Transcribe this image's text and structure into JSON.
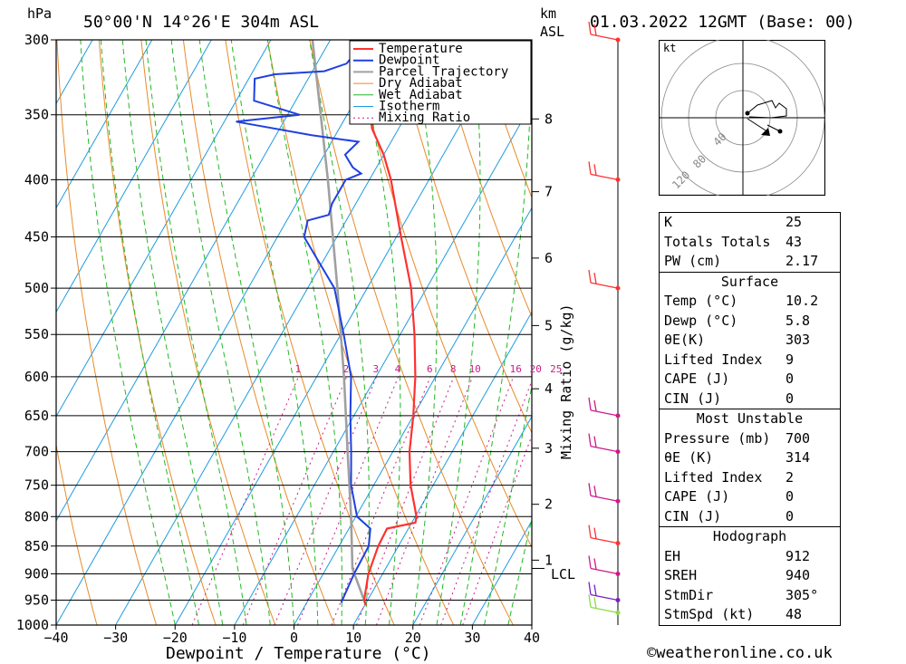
{
  "header": {
    "unit_left": "hPa",
    "location": "50°00'N  14°26'E  304m  ASL",
    "km_label": "km",
    "asl_label": "ASL",
    "datetime": "01.03.2022  12GMT  (Base: 00)"
  },
  "axes": {
    "xlabel": "Dewpoint / Temperature (°C)",
    "mixing_ratio_label": "Mixing Ratio (g/kg)",
    "lcl_label": "LCL",
    "x_ticks": [
      "−40",
      "−30",
      "−20",
      "−10",
      "0",
      "10",
      "20",
      "30",
      "40"
    ],
    "km_ticks": [
      "1",
      "2",
      "3",
      "4",
      "5",
      "6",
      "7",
      "8"
    ],
    "mixing_ratio_ticks": [
      "1",
      "2",
      "3",
      "4",
      "6",
      "8",
      "10",
      "16",
      "20",
      "25"
    ]
  },
  "legend": [
    "Temperature",
    "Dewpoint",
    "Parcel Trajectory",
    "Dry Adiabat",
    "Wet Adiabat",
    "Isotherm",
    "Mixing Ratio"
  ],
  "colors": {
    "temperature": "#ff3030",
    "dewpoint": "#2040e0",
    "parcel": "#a0a0a0",
    "dry_adiabat": "#e88a2a",
    "wet_adiabat": "#22b822",
    "isotherm": "#1e9be0",
    "mixing_ratio": "#cc1a8a"
  },
  "chart_data": {
    "type": "line",
    "title": "50°00'N 14°26'E 304m ASL",
    "xlabel": "Dewpoint / Temperature (°C)",
    "ylabel": "hPa",
    "y_scale": "log",
    "xlim": [
      -40,
      40
    ],
    "ylim": [
      1000,
      300
    ],
    "y_ticks": [
      300,
      350,
      400,
      450,
      500,
      550,
      600,
      650,
      700,
      750,
      800,
      850,
      900,
      950,
      1000
    ],
    "series": [
      {
        "name": "Temperature",
        "points": [
          [
            960,
            10.2
          ],
          [
            950,
            9.4
          ],
          [
            900,
            7.6
          ],
          [
            850,
            6.6
          ],
          [
            820,
            6.4
          ],
          [
            810,
            10.6
          ],
          [
            800,
            10.2
          ],
          [
            750,
            6.2
          ],
          [
            700,
            2.8
          ],
          [
            650,
            0.0
          ],
          [
            600,
            -3.4
          ],
          [
            550,
            -7.6
          ],
          [
            500,
            -12.6
          ],
          [
            450,
            -19.2
          ],
          [
            400,
            -26.4
          ],
          [
            380,
            -30.0
          ],
          [
            360,
            -34.5
          ],
          [
            350,
            -36.0
          ],
          [
            330,
            -39.5
          ],
          [
            300,
            -45.0
          ]
        ]
      },
      {
        "name": "Dewpoint",
        "points": [
          [
            955,
            5.8
          ],
          [
            900,
            5.2
          ],
          [
            850,
            5.0
          ],
          [
            820,
            3.6
          ],
          [
            800,
            0.2
          ],
          [
            750,
            -3.8
          ],
          [
            700,
            -7.0
          ],
          [
            650,
            -10.6
          ],
          [
            600,
            -14.2
          ],
          [
            550,
            -19.5
          ],
          [
            500,
            -25.5
          ],
          [
            450,
            -35.5
          ],
          [
            435,
            -36.5
          ],
          [
            430,
            -33.5
          ],
          [
            420,
            -34.0
          ],
          [
            400,
            -34.0
          ],
          [
            395,
            -32.0
          ],
          [
            390,
            -34.0
          ],
          [
            380,
            -36.5
          ],
          [
            370,
            -35.5
          ],
          [
            365,
            -44.0
          ],
          [
            355,
            -58.0
          ],
          [
            350,
            -48.0
          ],
          [
            340,
            -57.0
          ],
          [
            325,
            -59.0
          ],
          [
            322,
            -56.0
          ],
          [
            320,
            -48.0
          ],
          [
            315,
            -45.0
          ],
          [
            300,
            -44.0
          ]
        ]
      },
      {
        "name": "Parcel Trajectory",
        "points": [
          [
            960,
            10.2
          ],
          [
            890,
            4.4
          ],
          [
            800,
            -0.8
          ],
          [
            700,
            -7.6
          ],
          [
            600,
            -15.4
          ],
          [
            500,
            -25.0
          ],
          [
            400,
            -37.0
          ],
          [
            300,
            -53.0
          ]
        ]
      }
    ],
    "km_asl": [
      {
        "km": 1,
        "hpa": 875
      },
      {
        "km": 2,
        "hpa": 780
      },
      {
        "km": 3,
        "hpa": 695
      },
      {
        "km": 4,
        "hpa": 615
      },
      {
        "km": 5,
        "hpa": 540
      },
      {
        "km": 6,
        "hpa": 470
      },
      {
        "km": 7,
        "hpa": 410
      },
      {
        "km": 8,
        "hpa": 353
      }
    ],
    "lcl_hpa": 890,
    "wind_barbs_hpa": [
      300,
      400,
      500,
      650,
      700,
      775,
      845,
      900,
      950,
      975
    ]
  },
  "hodograph": {
    "unit": "kt",
    "ring_labels": [
      "40",
      "80",
      "120"
    ]
  },
  "indices": {
    "top": [
      {
        "label": "K",
        "value": "25"
      },
      {
        "label": "Totals Totals",
        "value": "43"
      },
      {
        "label": "PW (cm)",
        "value": "2.17"
      }
    ],
    "surface": {
      "title": "Surface",
      "rows": [
        {
          "label": "Temp (°C)",
          "value": "10.2"
        },
        {
          "label": "Dewp (°C)",
          "value": "5.8"
        },
        {
          "label": "θE(K)",
          "value": "303"
        },
        {
          "label": "Lifted Index",
          "value": "9"
        },
        {
          "label": "CAPE (J)",
          "value": "0"
        },
        {
          "label": "CIN (J)",
          "value": "0"
        }
      ]
    },
    "most_unstable": {
      "title": "Most Unstable",
      "rows": [
        {
          "label": "Pressure (mb)",
          "value": "700"
        },
        {
          "label": "θE (K)",
          "value": "314"
        },
        {
          "label": "Lifted Index",
          "value": "2"
        },
        {
          "label": "CAPE (J)",
          "value": "0"
        },
        {
          "label": "CIN (J)",
          "value": "0"
        }
      ]
    },
    "hodograph": {
      "title": "Hodograph",
      "rows": [
        {
          "label": "EH",
          "value": "912"
        },
        {
          "label": "SREH",
          "value": "940"
        },
        {
          "label": "StmDir",
          "value": "305°"
        },
        {
          "label": "StmSpd (kt)",
          "value": "48"
        }
      ]
    }
  },
  "footer": "©weatheronline.co.uk"
}
